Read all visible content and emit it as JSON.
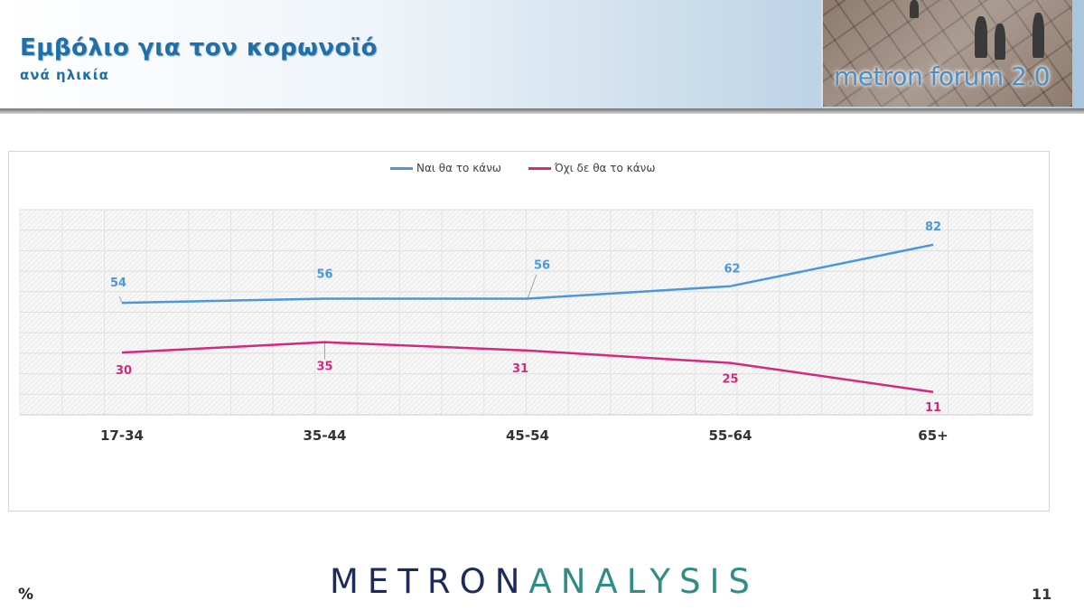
{
  "header": {
    "title": "Εμβόλιο για τον κορωνοϊό",
    "subtitle": "ανά ηλικία",
    "logo_text": "metron forum 2.0"
  },
  "footer": {
    "unit": "%",
    "page_number": "11",
    "brand_left": "METRON",
    "brand_right": "ANALYSIS"
  },
  "colors": {
    "series_yes": "#4a98da",
    "series_no": "#d3297f",
    "title": "#1f6fa8",
    "brand_dark": "#1d2b5c",
    "brand_teal": "#2f8d85"
  },
  "chart_data": {
    "type": "line",
    "categories": [
      "17-34",
      "35-44",
      "45-54",
      "55-64",
      "65+"
    ],
    "series": [
      {
        "name": "Ναι θα το κάνω",
        "values": [
          54,
          56,
          56,
          62,
          82
        ],
        "color": "#4a98da"
      },
      {
        "name": "Όχι δε θα το κάνω",
        "values": [
          30,
          35,
          31,
          25,
          11
        ],
        "color": "#d3297f"
      }
    ],
    "ylim": [
      0,
      100
    ],
    "grid": true,
    "legend_position": "top-center",
    "data_labels": true
  }
}
